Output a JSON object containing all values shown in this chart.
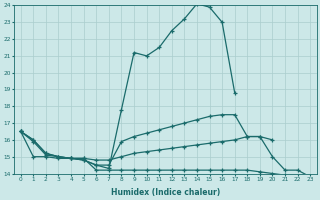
{
  "xlabel": "Humidex (Indice chaleur)",
  "xlim": [
    -0.5,
    23.5
  ],
  "ylim": [
    14,
    24
  ],
  "yticks": [
    14,
    15,
    16,
    17,
    18,
    19,
    20,
    21,
    22,
    23,
    24
  ],
  "xticks": [
    0,
    1,
    2,
    3,
    4,
    5,
    6,
    7,
    8,
    9,
    10,
    11,
    12,
    13,
    14,
    15,
    16,
    17,
    18,
    19,
    20,
    21,
    22,
    23
  ],
  "bg_color": "#cce8e8",
  "grid_color": "#b0d0d0",
  "line_color": "#1a6b6b",
  "line_main": [
    16.5,
    16.0,
    15.2,
    15.0,
    14.9,
    14.8,
    14.5,
    14.3,
    17.8,
    21.2,
    21.0,
    21.5,
    22.5,
    23.2,
    24.1,
    23.9,
    23.0,
    18.8,
    null,
    null,
    null,
    null,
    null,
    null
  ],
  "line_upper": [
    16.5,
    16.0,
    15.2,
    15.0,
    14.9,
    14.8,
    14.5,
    14.5,
    15.9,
    16.2,
    16.4,
    16.6,
    16.8,
    17.0,
    17.2,
    17.4,
    17.5,
    17.5,
    16.2,
    16.2,
    16.0,
    null,
    null,
    null
  ],
  "line_mid": [
    16.5,
    15.9,
    15.1,
    15.0,
    14.9,
    14.9,
    14.8,
    14.8,
    15.0,
    15.2,
    15.3,
    15.4,
    15.5,
    15.6,
    15.7,
    15.8,
    15.9,
    16.0,
    16.2,
    16.2,
    15.0,
    14.2,
    14.2,
    13.8
  ],
  "line_bot": [
    16.5,
    15.0,
    15.0,
    14.9,
    14.9,
    14.9,
    14.2,
    14.2,
    14.2,
    14.2,
    14.2,
    14.2,
    14.2,
    14.2,
    14.2,
    14.2,
    14.2,
    14.2,
    14.2,
    14.1,
    14.0,
    13.9,
    13.8,
    13.7
  ]
}
